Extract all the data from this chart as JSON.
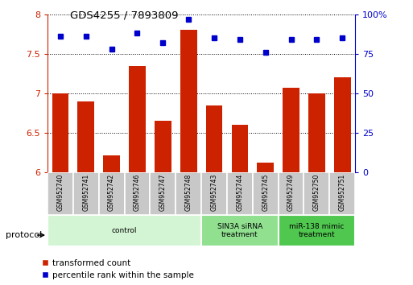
{
  "title": "GDS4255 / 7893809",
  "samples": [
    "GSM952740",
    "GSM952741",
    "GSM952742",
    "GSM952746",
    "GSM952747",
    "GSM952748",
    "GSM952743",
    "GSM952744",
    "GSM952745",
    "GSM952749",
    "GSM952750",
    "GSM952751"
  ],
  "red_values": [
    7.0,
    6.9,
    6.22,
    7.35,
    6.65,
    7.8,
    6.85,
    6.6,
    6.12,
    7.07,
    7.0,
    7.2
  ],
  "blue_values": [
    86,
    86,
    78,
    88,
    82,
    97,
    85,
    84,
    76,
    84,
    84,
    85
  ],
  "ylim_left": [
    6.0,
    8.0
  ],
  "ylim_right": [
    0,
    100
  ],
  "yticks_left": [
    6.0,
    6.5,
    7.0,
    7.5,
    8.0
  ],
  "yticks_right": [
    0,
    25,
    50,
    75,
    100
  ],
  "groups": [
    {
      "label": "control",
      "start": 0,
      "end": 6,
      "color": "#d4f5d4"
    },
    {
      "label": "SIN3A siRNA\ntreatment",
      "start": 6,
      "end": 9,
      "color": "#90e090"
    },
    {
      "label": "miR-138 mimic\ntreatment",
      "start": 9,
      "end": 12,
      "color": "#50c850"
    }
  ],
  "bar_color": "#cc2200",
  "dot_color": "#0000cc",
  "bar_bottom": 6.0,
  "legend_red": "transformed count",
  "legend_blue": "percentile rank within the sample",
  "protocol_label": "protocol"
}
